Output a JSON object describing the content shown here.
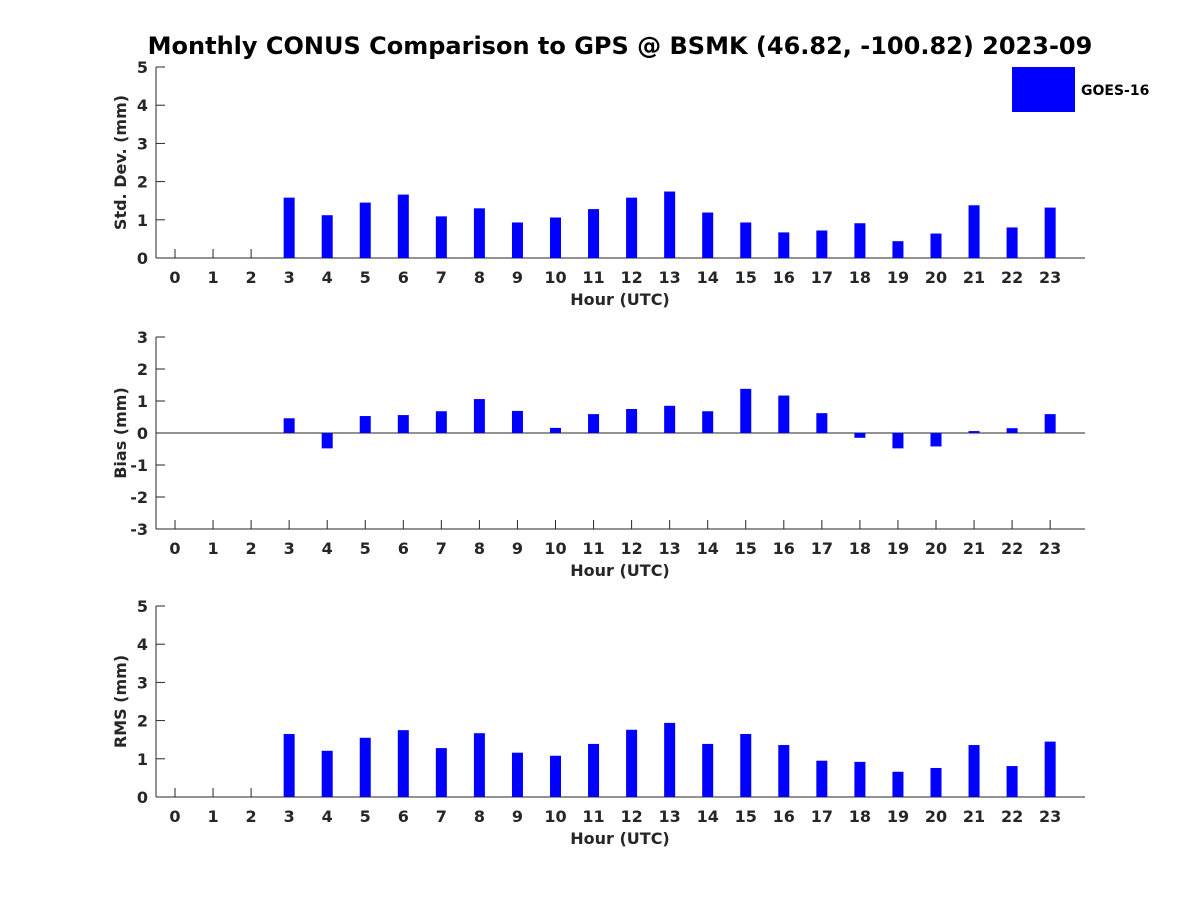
{
  "title": "Monthly CONUS Comparison to GPS @ BSMK (46.82, -100.82) 2023-09",
  "legend": {
    "label": "GOES-16",
    "color": "#0000ff",
    "position": "top-right"
  },
  "chart_data": [
    {
      "type": "bar",
      "name": "std-dev",
      "xlabel": "Hour (UTC)",
      "ylabel": "Std. Dev. (mm)",
      "ylim": [
        0,
        5
      ],
      "yticks": [
        0,
        1,
        2,
        3,
        4,
        5
      ],
      "categories": [
        "0",
        "1",
        "2",
        "3",
        "4",
        "5",
        "6",
        "7",
        "8",
        "9",
        "10",
        "11",
        "12",
        "13",
        "14",
        "15",
        "16",
        "17",
        "18",
        "19",
        "20",
        "21",
        "22",
        "23"
      ],
      "series": [
        {
          "name": "GOES-16",
          "color": "#0000ff",
          "values": [
            null,
            null,
            null,
            1.58,
            1.12,
            1.45,
            1.66,
            1.09,
            1.3,
            0.93,
            1.06,
            1.28,
            1.58,
            1.74,
            1.19,
            0.93,
            0.67,
            0.72,
            0.91,
            0.44,
            0.64,
            1.38,
            0.8,
            1.32
          ]
        }
      ]
    },
    {
      "type": "bar",
      "name": "bias",
      "xlabel": "Hour (UTC)",
      "ylabel": "Bias (mm)",
      "ylim": [
        -3,
        3
      ],
      "yticks": [
        -3,
        -2,
        -1,
        0,
        1,
        2,
        3
      ],
      "zero_line": true,
      "categories": [
        "0",
        "1",
        "2",
        "3",
        "4",
        "5",
        "6",
        "7",
        "8",
        "9",
        "10",
        "11",
        "12",
        "13",
        "14",
        "15",
        "16",
        "17",
        "18",
        "19",
        "20",
        "21",
        "22",
        "23"
      ],
      "series": [
        {
          "name": "GOES-16",
          "color": "#0000ff",
          "values": [
            null,
            null,
            null,
            0.46,
            -0.48,
            0.53,
            0.56,
            0.68,
            1.06,
            0.69,
            0.16,
            0.59,
            0.75,
            0.85,
            0.68,
            1.38,
            1.17,
            0.62,
            -0.15,
            -0.48,
            -0.42,
            0.06,
            0.15,
            0.59
          ]
        }
      ]
    },
    {
      "type": "bar",
      "name": "rms",
      "xlabel": "Hour (UTC)",
      "ylabel": "RMS (mm)",
      "ylim": [
        0,
        5
      ],
      "yticks": [
        0,
        1,
        2,
        3,
        4,
        5
      ],
      "categories": [
        "0",
        "1",
        "2",
        "3",
        "4",
        "5",
        "6",
        "7",
        "8",
        "9",
        "10",
        "11",
        "12",
        "13",
        "14",
        "15",
        "16",
        "17",
        "18",
        "19",
        "20",
        "21",
        "22",
        "23"
      ],
      "series": [
        {
          "name": "GOES-16",
          "color": "#0000ff",
          "values": [
            null,
            null,
            null,
            1.65,
            1.21,
            1.55,
            1.75,
            1.28,
            1.67,
            1.16,
            1.08,
            1.39,
            1.76,
            1.94,
            1.39,
            1.65,
            1.36,
            0.95,
            0.92,
            0.66,
            0.76,
            1.36,
            0.81,
            1.45
          ]
        }
      ]
    }
  ]
}
